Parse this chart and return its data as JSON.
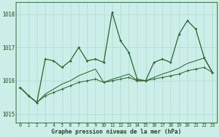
{
  "x": [
    0,
    1,
    2,
    3,
    4,
    5,
    6,
    7,
    8,
    9,
    10,
    11,
    12,
    13,
    14,
    15,
    16,
    17,
    18,
    19,
    20,
    21,
    22,
    23
  ],
  "main_y": [
    1015.8,
    1015.55,
    1015.35,
    1016.65,
    1016.6,
    1016.4,
    1016.6,
    1017.0,
    1016.6,
    1016.65,
    1016.55,
    1018.05,
    1017.2,
    1016.85,
    1016.05,
    1016.0,
    1016.55,
    1016.65,
    1016.55,
    1017.4,
    1017.8,
    1017.55,
    1016.7,
    1016.25
  ],
  "trend1_y": [
    1015.8,
    1015.55,
    1015.35,
    1015.55,
    1015.65,
    1015.75,
    1015.85,
    1015.95,
    1016.0,
    1016.05,
    1015.95,
    1016.0,
    1016.05,
    1016.1,
    1016.0,
    1016.0,
    1016.05,
    1016.1,
    1016.15,
    1016.2,
    1016.3,
    1016.35,
    1016.4,
    1016.25
  ],
  "trend2_y": [
    1015.8,
    1015.55,
    1015.35,
    1015.6,
    1015.75,
    1015.9,
    1016.0,
    1016.15,
    1016.25,
    1016.35,
    1015.95,
    1016.05,
    1016.12,
    1016.2,
    1016.0,
    1016.0,
    1016.1,
    1016.2,
    1016.28,
    1016.38,
    1016.52,
    1016.6,
    1016.68,
    1016.25
  ],
  "line_color": "#2d6a2d",
  "bg_color": "#cceee8",
  "grid_color": "#aadddd",
  "text_color": "#1a4a1a",
  "xlabel": "Graphe pression niveau de la mer (hPa)",
  "ylim": [
    1014.75,
    1018.35
  ],
  "yticks": [
    1015,
    1016,
    1017,
    1018
  ],
  "xticks": [
    0,
    1,
    2,
    3,
    4,
    5,
    6,
    7,
    8,
    9,
    10,
    11,
    12,
    13,
    14,
    15,
    16,
    17,
    18,
    19,
    20,
    21,
    22,
    23
  ]
}
